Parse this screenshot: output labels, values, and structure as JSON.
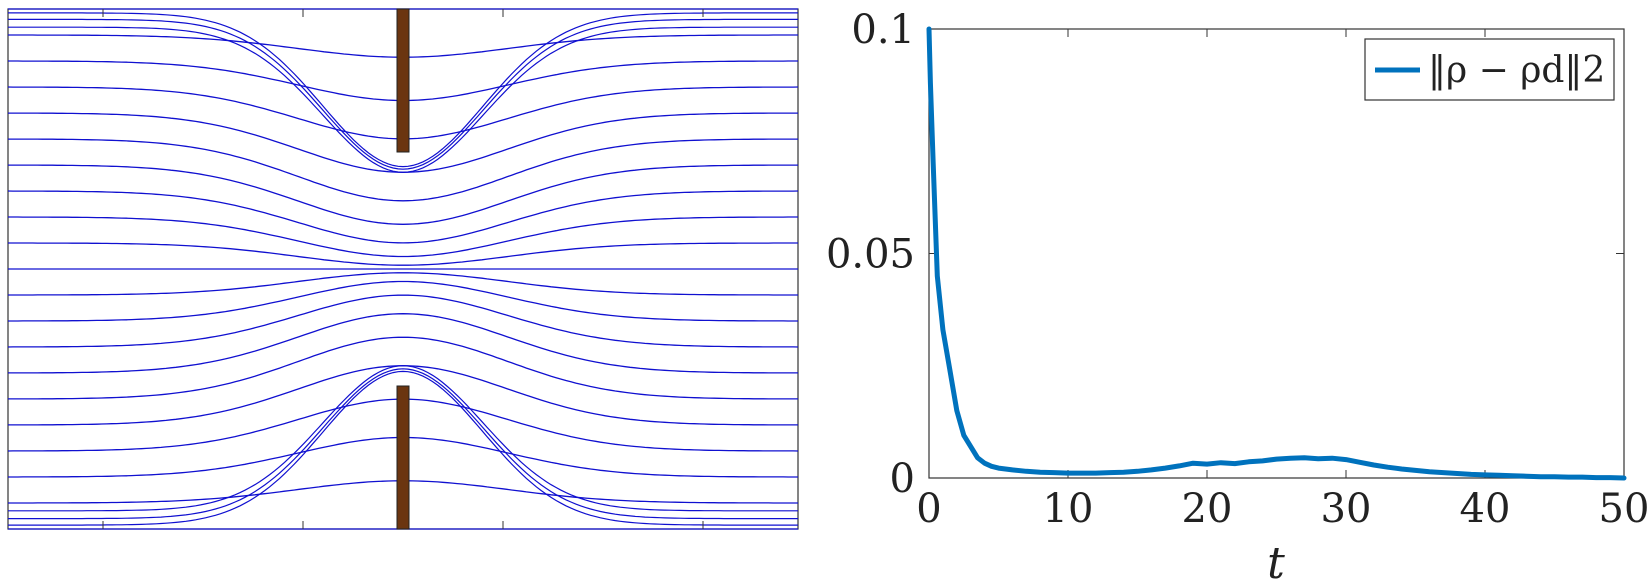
{
  "chart_data": [
    {
      "type": "streamline",
      "title": "",
      "xlabel": "",
      "ylabel": "",
      "show_ticks": true,
      "tick_labels": false,
      "channel_ylim": [
        -1,
        1
      ],
      "n_streamlines": 21,
      "line_color": "#1010d0",
      "obstacle_color": "#6b3510",
      "obstacles": [
        {
          "name": "upper-barrier",
          "x": 0.0,
          "y_range": [
            0.45,
            1.0
          ]
        },
        {
          "name": "lower-barrier",
          "x": 0.0,
          "y_range": [
            -1.0,
            -0.45
          ]
        }
      ],
      "xlim": [
        -1.58,
        1.58
      ]
    },
    {
      "type": "line",
      "title": "",
      "xlabel": "t",
      "ylabel": "",
      "xlim": [
        0,
        50
      ],
      "ylim": [
        0,
        0.1
      ],
      "xticks": [
        0,
        10,
        20,
        30,
        40,
        50
      ],
      "yticks": [
        0,
        0.05,
        0.1
      ],
      "xtick_labels": [
        "0",
        "10",
        "20",
        "30",
        "40",
        "50"
      ],
      "ytick_labels": [
        "0",
        "0.05",
        "0.1"
      ],
      "grid": false,
      "legend_position": "top-right",
      "series": [
        {
          "name": "‖ρ − ρd‖2",
          "color": "#0072bd",
          "x": [
            0,
            0.1,
            0.3,
            0.6,
            1.0,
            1.5,
            2.0,
            2.5,
            3.0,
            3.5,
            4.0,
            4.5,
            5,
            6,
            7,
            8,
            9,
            10,
            11,
            12,
            13,
            14,
            15,
            16,
            17,
            18,
            19,
            20,
            21,
            22,
            23,
            24,
            25,
            26,
            27,
            28,
            29,
            30,
            31,
            32,
            33,
            34,
            35,
            36,
            37,
            38,
            39,
            40,
            41,
            42,
            43,
            44,
            45,
            46,
            47,
            48,
            49,
            50
          ],
          "y": [
            0.1,
            0.088,
            0.07,
            0.045,
            0.033,
            0.024,
            0.015,
            0.0095,
            0.007,
            0.0045,
            0.0033,
            0.0026,
            0.0022,
            0.0018,
            0.0015,
            0.0013,
            0.0012,
            0.0011,
            0.0011,
            0.0011,
            0.0012,
            0.0013,
            0.0015,
            0.0018,
            0.0022,
            0.0027,
            0.0033,
            0.0031,
            0.0034,
            0.0032,
            0.0036,
            0.0038,
            0.0042,
            0.0044,
            0.0045,
            0.0043,
            0.0044,
            0.0041,
            0.0035,
            0.0029,
            0.0024,
            0.002,
            0.0017,
            0.0014,
            0.0012,
            0.001,
            0.0008,
            0.0007,
            0.0006,
            0.0005,
            0.0004,
            0.0003,
            0.0003,
            0.0002,
            0.0002,
            0.0001,
            0.0001,
            0.0
          ]
        }
      ]
    }
  ]
}
